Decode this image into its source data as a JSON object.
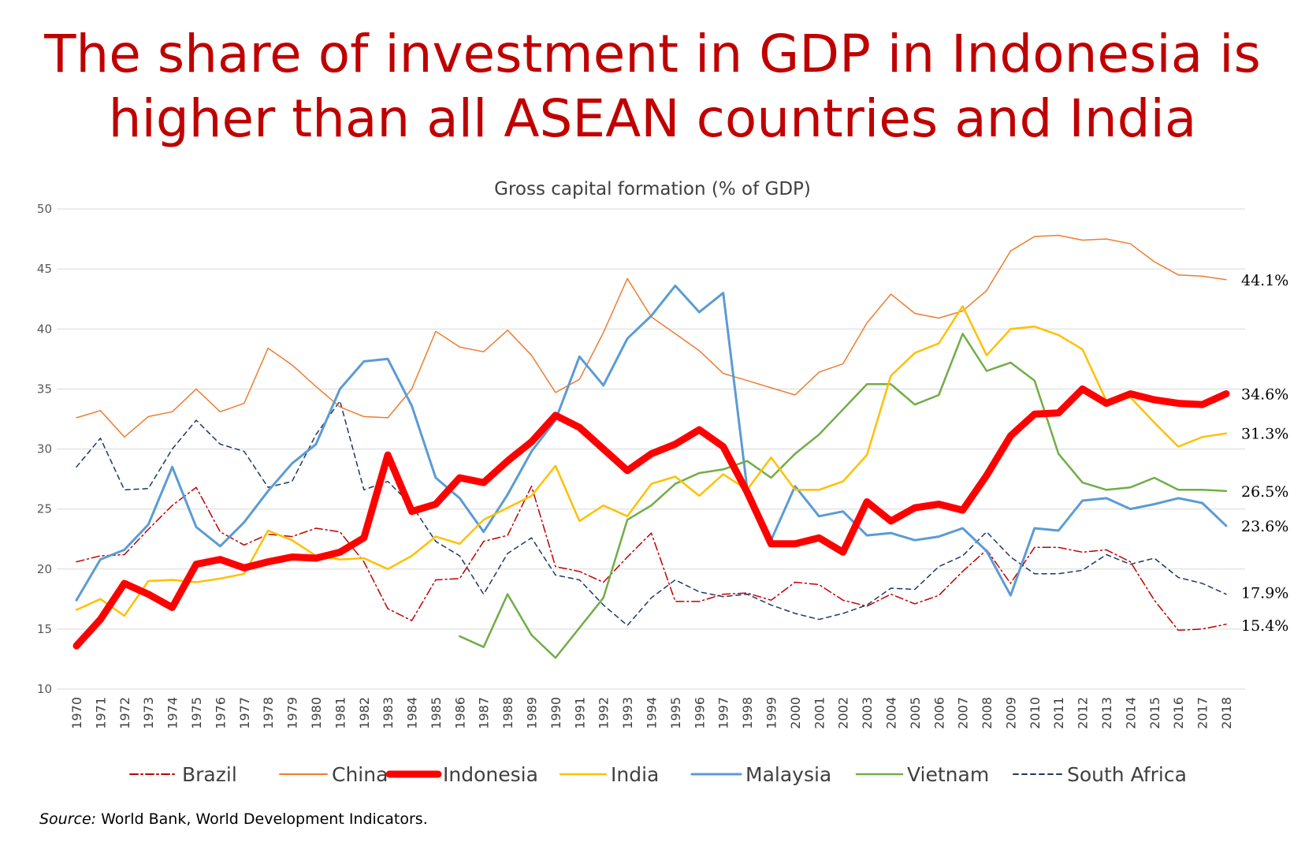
{
  "slide": {
    "title_line1": "The share of investment in GDP in Indonesia is",
    "title_line2": "higher than all ASEAN countries and India"
  },
  "source": {
    "label": "Source:",
    "text": " World Bank, World Development Indicators."
  },
  "chart_data": {
    "type": "line",
    "title": "Gross capital formation (% of GDP)",
    "xlabel": "",
    "ylabel": "",
    "ylim": [
      10,
      50
    ],
    "yticks": [
      10,
      15,
      20,
      25,
      30,
      35,
      40,
      45,
      50
    ],
    "grid": "horizontal",
    "legend_position": "bottom",
    "x": [
      1970,
      1971,
      1972,
      1973,
      1974,
      1975,
      1976,
      1977,
      1978,
      1979,
      1980,
      1981,
      1982,
      1983,
      1984,
      1985,
      1986,
      1987,
      1988,
      1989,
      1990,
      1991,
      1992,
      1993,
      1994,
      1995,
      1996,
      1997,
      1998,
      1999,
      2000,
      2001,
      2002,
      2003,
      2004,
      2005,
      2006,
      2007,
      2008,
      2009,
      2010,
      2011,
      2012,
      2013,
      2014,
      2015,
      2016,
      2017,
      2018
    ],
    "series": [
      {
        "name": "Brazil",
        "color": "#c00000",
        "style": "dashdot",
        "width": 1.5,
        "end_label": "15.4%",
        "values": [
          20.6,
          21.1,
          21.2,
          23.3,
          25.3,
          26.8,
          23.1,
          22.0,
          22.9,
          22.7,
          23.4,
          23.1,
          20.6,
          16.7,
          15.7,
          19.1,
          19.2,
          22.3,
          22.8,
          26.9,
          20.2,
          19.8,
          18.9,
          21.0,
          23.0,
          17.3,
          17.3,
          17.9,
          18.0,
          17.4,
          18.9,
          18.7,
          17.4,
          16.9,
          17.9,
          17.1,
          17.8,
          19.8,
          21.6,
          18.8,
          21.8,
          21.8,
          21.4,
          21.6,
          20.6,
          17.4,
          14.9,
          15.0,
          15.4
        ]
      },
      {
        "name": "China",
        "color": "#ed7d31",
        "style": "solid",
        "width": 1.5,
        "end_label": "44.1%",
        "values": [
          32.6,
          33.2,
          31.0,
          32.7,
          33.1,
          35.0,
          33.1,
          33.8,
          38.4,
          37.0,
          35.2,
          33.5,
          32.7,
          32.6,
          35.0,
          39.8,
          38.5,
          38.1,
          39.9,
          37.8,
          34.7,
          35.8,
          39.7,
          44.2,
          41.0,
          39.6,
          38.2,
          36.3,
          35.7,
          35.1,
          34.5,
          36.4,
          37.1,
          40.5,
          42.9,
          41.3,
          40.9,
          41.5,
          43.2,
          46.5,
          47.7,
          47.8,
          47.4,
          47.5,
          47.1,
          45.6,
          44.5,
          44.4,
          44.1
        ]
      },
      {
        "name": "Indonesia",
        "color": "#ff0000",
        "style": "solid",
        "width": 9,
        "end_label": "34.6%",
        "values": [
          13.6,
          15.8,
          18.8,
          17.9,
          16.8,
          20.4,
          20.8,
          20.1,
          20.6,
          21.0,
          20.9,
          21.4,
          22.6,
          29.5,
          24.8,
          25.4,
          27.6,
          27.2,
          29.0,
          30.6,
          32.8,
          31.8,
          30.0,
          28.2,
          29.6,
          30.4,
          31.6,
          30.2,
          26.4,
          22.1,
          22.1,
          22.6,
          21.4,
          25.6,
          24.0,
          25.1,
          25.4,
          24.9,
          27.8,
          31.1,
          32.9,
          33.0,
          35.0,
          33.8,
          34.6,
          34.1,
          33.8,
          33.7,
          34.6
        ]
      },
      {
        "name": "India",
        "color": "#ffc000",
        "style": "solid",
        "width": 2.5,
        "end_label": "31.3%",
        "values": [
          16.6,
          17.5,
          16.1,
          19.0,
          19.1,
          18.9,
          19.2,
          19.6,
          23.2,
          22.4,
          21.1,
          20.8,
          20.9,
          20.0,
          21.1,
          22.7,
          22.1,
          24.1,
          25.1,
          26.1,
          28.6,
          24.0,
          25.3,
          24.4,
          27.1,
          27.7,
          26.1,
          27.9,
          26.6,
          29.3,
          26.6,
          26.6,
          27.3,
          29.5,
          36.1,
          38.0,
          38.8,
          41.9,
          37.8,
          40.0,
          40.2,
          39.5,
          38.3,
          34.0,
          34.3,
          32.2,
          30.2,
          31.0,
          31.3
        ]
      },
      {
        "name": "Malaysia",
        "color": "#5b9bd5",
        "style": "solid",
        "width": 3,
        "end_label": "23.6%",
        "values": [
          17.4,
          20.8,
          21.6,
          23.7,
          28.5,
          23.5,
          21.9,
          23.9,
          26.5,
          28.8,
          30.4,
          35.0,
          37.3,
          37.5,
          33.6,
          27.6,
          25.9,
          23.1,
          26.2,
          29.8,
          32.4,
          37.7,
          35.3,
          39.2,
          41.1,
          43.6,
          41.4,
          43.0,
          26.7,
          22.4,
          26.9,
          24.4,
          24.8,
          22.8,
          23.0,
          22.4,
          22.7,
          23.4,
          21.5,
          17.8,
          23.4,
          23.2,
          25.7,
          25.9,
          25.0,
          25.4,
          25.9,
          25.5,
          23.6
        ]
      },
      {
        "name": "Vietnam",
        "color": "#70ad47",
        "style": "solid",
        "width": 2.5,
        "end_label": "26.5%",
        "values": [
          null,
          null,
          null,
          null,
          null,
          null,
          null,
          null,
          null,
          null,
          null,
          null,
          null,
          null,
          null,
          null,
          14.4,
          13.5,
          17.9,
          14.5,
          12.6,
          15.1,
          17.6,
          24.1,
          25.3,
          27.1,
          28.0,
          28.3,
          29.0,
          27.6,
          29.6,
          31.2,
          33.3,
          35.4,
          35.4,
          33.7,
          34.5,
          39.6,
          36.5,
          37.2,
          35.7,
          29.6,
          27.2,
          26.6,
          26.8,
          27.6,
          26.6,
          26.6,
          26.5
        ]
      },
      {
        "name": "South Africa",
        "color": "#203864",
        "style": "dashed",
        "width": 1.5,
        "end_label": "17.9%",
        "values": [
          28.5,
          30.9,
          26.6,
          26.7,
          30.0,
          32.4,
          30.4,
          29.8,
          26.8,
          27.3,
          31.2,
          34.0,
          26.6,
          27.3,
          25.3,
          22.3,
          21.1,
          17.9,
          21.3,
          22.6,
          19.5,
          19.1,
          17.0,
          15.3,
          17.6,
          19.1,
          18.1,
          17.7,
          17.9,
          17.0,
          16.3,
          15.8,
          16.3,
          17.0,
          18.4,
          18.3,
          20.2,
          21.1,
          23.1,
          21.0,
          19.6,
          19.6,
          19.9,
          21.2,
          20.4,
          20.9,
          19.3,
          18.8,
          17.9
        ]
      }
    ]
  }
}
